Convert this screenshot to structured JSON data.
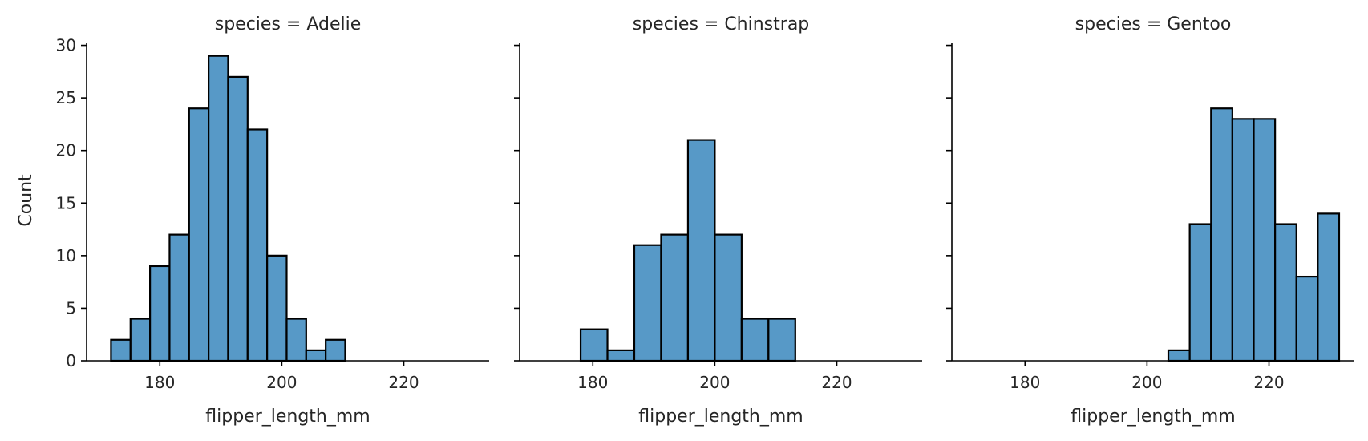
{
  "chart_data": [
    {
      "type": "bar",
      "title": "species = Adelie",
      "xlabel": "flipper_length_mm",
      "ylabel": "Count",
      "xlim": [
        168,
        234
      ],
      "ylim": [
        0,
        30.5
      ],
      "xticks": [
        180,
        200,
        220
      ],
      "yticks": [
        0,
        5,
        10,
        15,
        20,
        25,
        30
      ],
      "bar_color": "#5799c7",
      "edge_color": "#000000",
      "bins": [
        {
          "x0": 172.0,
          "x1": 175.2,
          "count": 2
        },
        {
          "x0": 175.2,
          "x1": 178.4,
          "count": 4
        },
        {
          "x0": 178.4,
          "x1": 181.6,
          "count": 9
        },
        {
          "x0": 181.6,
          "x1": 184.8,
          "count": 12
        },
        {
          "x0": 184.8,
          "x1": 188.0,
          "count": 24
        },
        {
          "x0": 188.0,
          "x1": 191.2,
          "count": 29
        },
        {
          "x0": 191.2,
          "x1": 194.4,
          "count": 27
        },
        {
          "x0": 194.4,
          "x1": 197.6,
          "count": 22
        },
        {
          "x0": 197.6,
          "x1": 200.8,
          "count": 10
        },
        {
          "x0": 200.8,
          "x1": 204.0,
          "count": 4
        },
        {
          "x0": 204.0,
          "x1": 207.2,
          "count": 1
        },
        {
          "x0": 207.2,
          "x1": 210.4,
          "count": 2
        }
      ]
    },
    {
      "type": "bar",
      "title": "species = Chinstrap",
      "xlabel": "flipper_length_mm",
      "ylabel": "",
      "xlim": [
        168,
        234
      ],
      "ylim": [
        0,
        30.5
      ],
      "xticks": [
        180,
        200,
        220
      ],
      "yticks": [
        0,
        5,
        10,
        15,
        20,
        25,
        30
      ],
      "bar_color": "#5799c7",
      "edge_color": "#000000",
      "bins": [
        {
          "x0": 178.0,
          "x1": 182.4,
          "count": 3
        },
        {
          "x0": 182.4,
          "x1": 186.8,
          "count": 1
        },
        {
          "x0": 186.8,
          "x1": 191.2,
          "count": 11
        },
        {
          "x0": 191.2,
          "x1": 195.6,
          "count": 12
        },
        {
          "x0": 195.6,
          "x1": 200.0,
          "count": 21
        },
        {
          "x0": 200.0,
          "x1": 204.4,
          "count": 12
        },
        {
          "x0": 204.4,
          "x1": 208.8,
          "count": 4
        },
        {
          "x0": 208.8,
          "x1": 213.2,
          "count": 4
        }
      ]
    },
    {
      "type": "bar",
      "title": "species = Gentoo",
      "xlabel": "flipper_length_mm",
      "ylabel": "",
      "xlim": [
        168,
        234
      ],
      "ylim": [
        0,
        30.5
      ],
      "xticks": [
        180,
        200,
        220
      ],
      "yticks": [
        0,
        5,
        10,
        15,
        20,
        25,
        30
      ],
      "bar_color": "#5799c7",
      "edge_color": "#000000",
      "bins": [
        {
          "x0": 203.5,
          "x1": 207.0,
          "count": 1
        },
        {
          "x0": 207.0,
          "x1": 210.5,
          "count": 13
        },
        {
          "x0": 210.5,
          "x1": 214.0,
          "count": 24
        },
        {
          "x0": 214.0,
          "x1": 217.5,
          "count": 23
        },
        {
          "x0": 217.5,
          "x1": 221.0,
          "count": 23
        },
        {
          "x0": 221.0,
          "x1": 224.5,
          "count": 13
        },
        {
          "x0": 224.5,
          "x1": 228.0,
          "count": 8
        },
        {
          "x0": 228.0,
          "x1": 231.5,
          "count": 14
        }
      ]
    }
  ]
}
